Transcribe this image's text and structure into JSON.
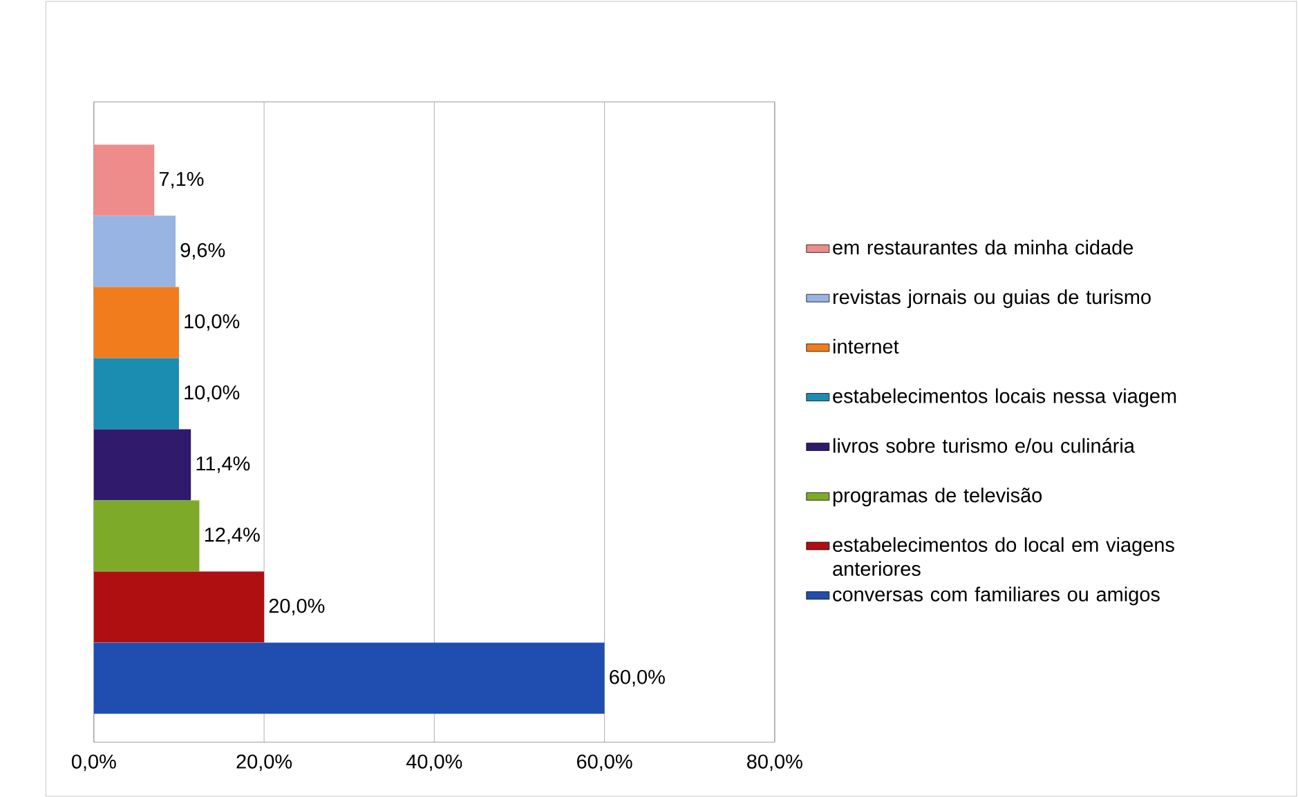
{
  "chart_data": {
    "type": "bar",
    "orientation": "horizontal",
    "categories": [
      null
    ],
    "series": [
      {
        "name": "em restaurantes da minha cidade",
        "color": "#ee8c8c",
        "values": [
          7.1
        ],
        "value_labels": [
          "7,1%"
        ]
      },
      {
        "name": "revistas jornais ou guias de turismo",
        "color": "#97b4e2",
        "values": [
          9.6
        ],
        "value_labels": [
          "9,6%"
        ]
      },
      {
        "name": "internet",
        "color": "#f07c1e",
        "values": [
          10.0
        ],
        "value_labels": [
          "10,0%"
        ]
      },
      {
        "name": "estabelecimentos locais nessa viagem",
        "color": "#1b8db0",
        "values": [
          10.0
        ],
        "value_labels": [
          "10,0%"
        ]
      },
      {
        "name": "livros sobre turismo e/ou culinária",
        "color": "#301a6b",
        "values": [
          11.4
        ],
        "value_labels": [
          "11,4%"
        ]
      },
      {
        "name": "programas de televisão",
        "color": "#7eaa29",
        "values": [
          12.4
        ],
        "value_labels": [
          "12,4%"
        ]
      },
      {
        "name": "estabelecimentos do local em viagens anteriores",
        "color": "#b00f12",
        "values": [
          20.0
        ],
        "value_labels": [
          "20,0%"
        ]
      },
      {
        "name": "conversas com familiares ou amigos",
        "color": "#1f4db0",
        "values": [
          60.0
        ],
        "value_labels": [
          "60,0%"
        ]
      }
    ],
    "xlim": [
      0,
      80
    ],
    "xticks": [
      {
        "value": 0,
        "label": "0,0%"
      },
      {
        "value": 20,
        "label": "20,0%"
      },
      {
        "value": 40,
        "label": "40,0%"
      },
      {
        "value": 60,
        "label": "60,0%"
      },
      {
        "value": 80,
        "label": "80,0%"
      }
    ],
    "grid": "x",
    "legend": "right",
    "tick_labels": "x"
  }
}
